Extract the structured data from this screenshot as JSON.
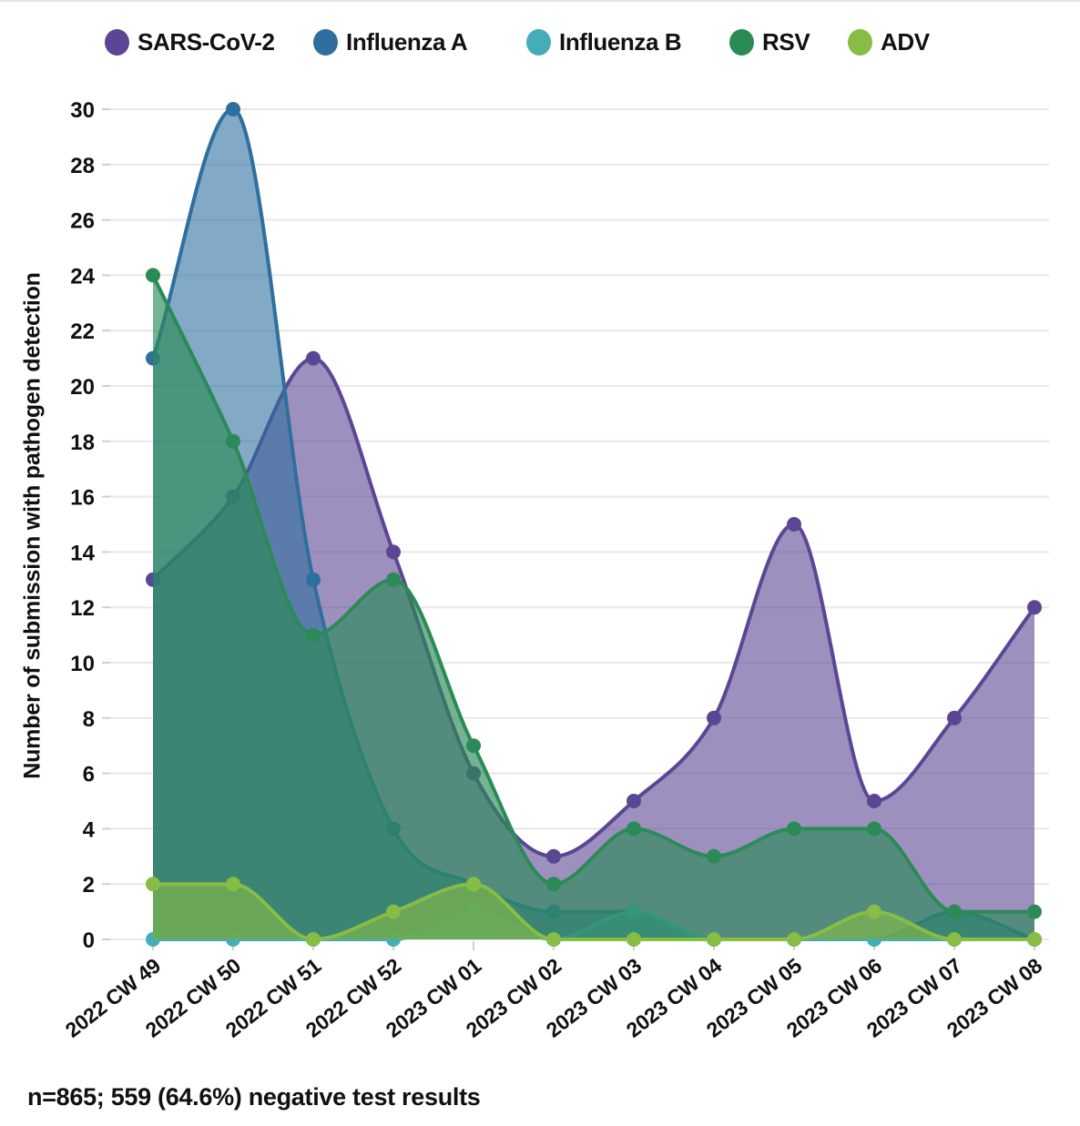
{
  "chart_data": {
    "type": "area",
    "title": "",
    "xlabel": "",
    "ylabel": "Number of submission with pathogen detection",
    "ylim": [
      0,
      30
    ],
    "ytick_step": 2,
    "grid": "horizontal",
    "legend_position": "top",
    "categories": [
      "2022 CW 49",
      "2022 CW 50",
      "2022 CW 51",
      "2022 CW 52",
      "2023 CW 01",
      "2023 CW 02",
      "2023 CW 03",
      "2023 CW 04",
      "2023 CW 05",
      "2023 CW 06",
      "2023 CW 07",
      "2023 CW 08"
    ],
    "series": [
      {
        "name": "SARS-CoV-2",
        "color": "#5B4695",
        "fill_opacity": 0.6,
        "values": [
          13,
          16,
          21,
          14,
          6,
          3,
          5,
          8,
          15,
          5,
          8,
          12
        ]
      },
      {
        "name": "Influenza A",
        "color": "#2E6F9E",
        "fill_opacity": 0.6,
        "values": [
          21,
          30,
          13,
          4,
          2,
          1,
          1,
          0,
          0,
          0,
          1,
          0
        ]
      },
      {
        "name": "Influenza B",
        "color": "#45ADB8",
        "fill_opacity": 0.45,
        "values": [
          0,
          0,
          0,
          0,
          1,
          0,
          1,
          0,
          0,
          0,
          0,
          0
        ]
      },
      {
        "name": "RSV",
        "color": "#2B8B57",
        "fill_opacity": 0.65,
        "values": [
          24,
          18,
          11,
          13,
          7,
          2,
          4,
          3,
          4,
          4,
          1,
          1
        ]
      },
      {
        "name": "ADV",
        "color": "#87BC45",
        "fill_opacity": 0.62,
        "values": [
          2,
          2,
          0,
          1,
          2,
          0,
          0,
          0,
          0,
          1,
          0,
          0
        ]
      }
    ],
    "footer": "n=865; 559 (64.6%) negative test results"
  },
  "layout_colors": {
    "gridline": "#e8e8e8",
    "tick": "#cfcfcf",
    "text": "#111111"
  }
}
